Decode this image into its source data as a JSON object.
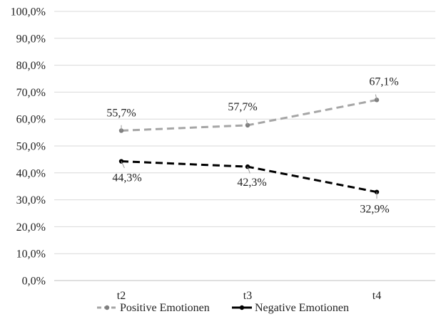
{
  "chart_data": {
    "type": "line",
    "categories": [
      "t2",
      "t3",
      "t4"
    ],
    "ylim": [
      0,
      100
    ],
    "yticks": [
      "0,0%",
      "10,0%",
      "20,0%",
      "30,0%",
      "40,0%",
      "50,0%",
      "60,0%",
      "70,0%",
      "80,0%",
      "90,0%",
      "100,0%"
    ],
    "grid": true,
    "legend_position": "bottom",
    "series": [
      {
        "name": "Positive Emotionen",
        "values": [
          55.7,
          57.7,
          67.1
        ],
        "labels": [
          "55,7%",
          "57,7%",
          "67,1%"
        ],
        "color": "#a6a6a6",
        "style": "dashed"
      },
      {
        "name": "Negative Emotionen",
        "values": [
          44.3,
          42.3,
          32.9
        ],
        "labels": [
          "44,3%",
          "42,3%",
          "32,9%"
        ],
        "color": "#000000",
        "style": "dashed"
      }
    ]
  }
}
